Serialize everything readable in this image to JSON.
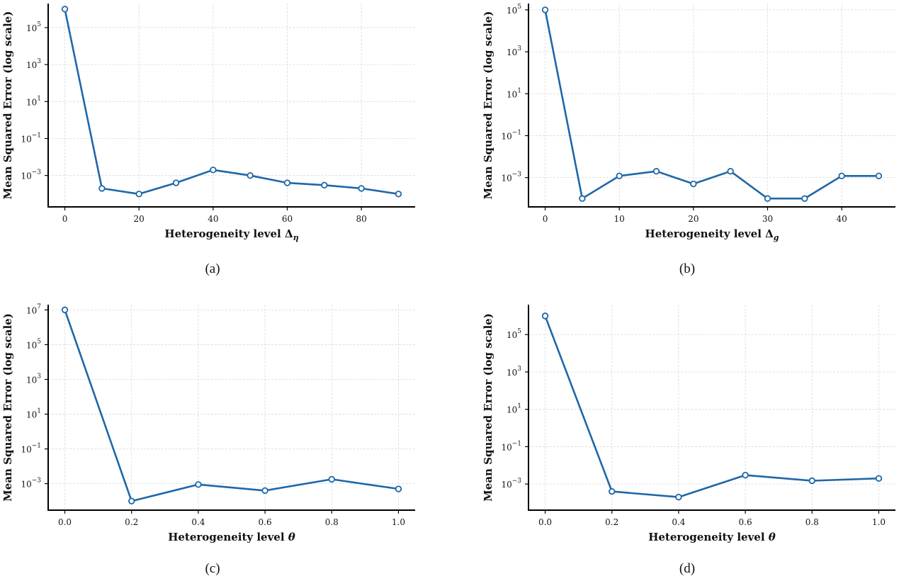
{
  "colors": {
    "series": "#1f67a8",
    "axis": "#000000",
    "grid": "#d9d9d9"
  },
  "chart_data": [
    {
      "type": "line",
      "caption": "(a)",
      "xlabel": "Heterogeneity level Δη",
      "ylabel": "Mean Squared Error (log scale)",
      "yscale": "log",
      "grid": true,
      "x": [
        0,
        10,
        20,
        30,
        40,
        50,
        60,
        70,
        80,
        90
      ],
      "y": [
        1000000,
        0.0002,
        0.0001,
        0.0004,
        0.002,
        0.001,
        0.0004,
        0.0003,
        0.0002,
        0.0001
      ],
      "xlim": [
        -4.5,
        94.5
      ],
      "ylim": [
        2e-05,
        2000000
      ],
      "xticks": [
        0,
        20,
        40,
        60,
        80
      ],
      "xtick_labels": [
        "0",
        "20",
        "40",
        "60",
        "80"
      ],
      "yticks": [
        0.001,
        0.1,
        10,
        1000,
        100000
      ],
      "ytick_labels": [
        [
          "10",
          "−3"
        ],
        [
          "10",
          "−1"
        ],
        [
          "10",
          "1"
        ],
        [
          "10",
          "3"
        ],
        [
          "10",
          "5"
        ]
      ]
    },
    {
      "type": "line",
      "caption": "(b)",
      "xlabel": "Heterogeneity level Δg",
      "ylabel": "Mean Squared Error (log scale)",
      "yscale": "log",
      "grid": true,
      "x": [
        0,
        5,
        10,
        15,
        20,
        25,
        30,
        35,
        40,
        45
      ],
      "y": [
        100000,
        0.0001,
        0.0012,
        0.002,
        0.0005,
        0.002,
        0.0001,
        0.0001,
        0.0012,
        0.0012
      ],
      "xlim": [
        -2.25,
        47.25
      ],
      "ylim": [
        4e-05,
        200000
      ],
      "xticks": [
        0,
        10,
        20,
        30,
        40
      ],
      "xtick_labels": [
        "0",
        "10",
        "20",
        "30",
        "40"
      ],
      "yticks": [
        0.001,
        0.1,
        10,
        1000,
        100000
      ],
      "ytick_labels": [
        [
          "10",
          "−3"
        ],
        [
          "10",
          "−1"
        ],
        [
          "10",
          "1"
        ],
        [
          "10",
          "3"
        ],
        [
          "10",
          "5"
        ]
      ]
    },
    {
      "type": "line",
      "caption": "(c)",
      "xlabel": "Heterogeneity level θ",
      "ylabel": "Mean Squared Error (log scale)",
      "yscale": "log",
      "grid": true,
      "x": [
        0.0,
        0.2,
        0.4,
        0.6,
        0.8,
        1.0
      ],
      "y": [
        10000000,
        0.0001,
        0.0009,
        0.0004,
        0.0018,
        0.0005
      ],
      "xlim": [
        -0.05,
        1.05
      ],
      "ylim": [
        3e-05,
        20000000
      ],
      "xticks": [
        0.0,
        0.2,
        0.4,
        0.6,
        0.8,
        1.0
      ],
      "xtick_labels": [
        "0.0",
        "0.2",
        "0.4",
        "0.6",
        "0.8",
        "1.0"
      ],
      "yticks": [
        0.001,
        0.1,
        10,
        1000,
        100000,
        10000000
      ],
      "ytick_labels": [
        [
          "10",
          "−3"
        ],
        [
          "10",
          "−1"
        ],
        [
          "10",
          "1"
        ],
        [
          "10",
          "3"
        ],
        [
          "10",
          "5"
        ],
        [
          "10",
          "7"
        ]
      ]
    },
    {
      "type": "line",
      "caption": "(d)",
      "xlabel": "Heterogeneity level θ",
      "ylabel": "Mean Squared Error (log scale)",
      "yscale": "log",
      "grid": true,
      "x": [
        0.0,
        0.2,
        0.4,
        0.6,
        0.8,
        1.0
      ],
      "y": [
        1000000,
        0.0004,
        0.0002,
        0.003,
        0.0015,
        0.002
      ],
      "xlim": [
        -0.05,
        1.05
      ],
      "ylim": [
        4e-05,
        4000000
      ],
      "xticks": [
        0.0,
        0.2,
        0.4,
        0.6,
        0.8,
        1.0
      ],
      "xtick_labels": [
        "0.0",
        "0.2",
        "0.4",
        "0.6",
        "0.8",
        "1.0"
      ],
      "yticks": [
        0.001,
        0.1,
        10,
        1000,
        100000
      ],
      "ytick_labels": [
        [
          "10",
          "−3"
        ],
        [
          "10",
          "−1"
        ],
        [
          "10",
          "1"
        ],
        [
          "10",
          "3"
        ],
        [
          "10",
          "5"
        ]
      ]
    }
  ]
}
